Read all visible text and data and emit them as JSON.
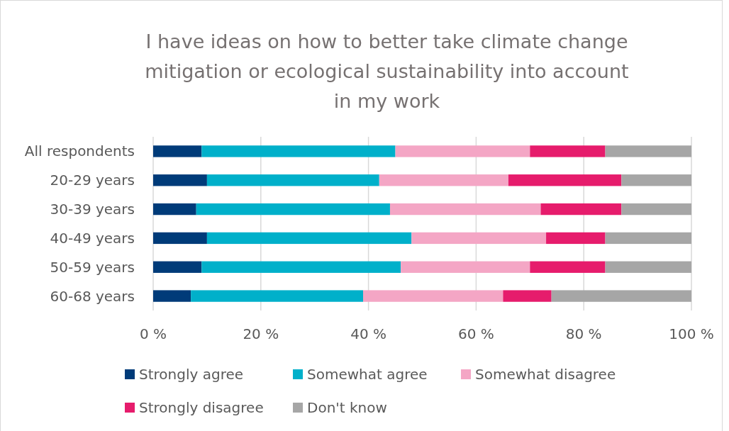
{
  "chart_data": {
    "type": "bar",
    "orientation": "horizontal",
    "stacked": true,
    "title": "I have ideas on how to better take climate change mitigation or ecological sustainability into account in my work",
    "categories": [
      "All respondents",
      "20-29 years",
      "30-39 years",
      "40-49 years",
      "50-59 years",
      "60-68 years"
    ],
    "series": [
      {
        "name": "Strongly agree",
        "color": "#003b79",
        "values": [
          9,
          10,
          8,
          10,
          9,
          7
        ]
      },
      {
        "name": "Somewhat agree",
        "color": "#00b0ca",
        "values": [
          36,
          32,
          36,
          38,
          37,
          32
        ]
      },
      {
        "name": "Somewhat disagree",
        "color": "#f4a6c5",
        "values": [
          25,
          24,
          28,
          25,
          24,
          26
        ]
      },
      {
        "name": "Strongly disagree",
        "color": "#e61c6c",
        "values": [
          14,
          21,
          15,
          11,
          14,
          9
        ]
      },
      {
        "name": "Don't know",
        "color": "#a6a6a6",
        "values": [
          16,
          13,
          13,
          16,
          16,
          26
        ]
      }
    ],
    "xlim": [
      0,
      100
    ],
    "xticks": [
      {
        "value": 0,
        "label": "0 %"
      },
      {
        "value": 20,
        "label": "20 %"
      },
      {
        "value": 40,
        "label": "40 %"
      },
      {
        "value": 60,
        "label": "60 %"
      },
      {
        "value": 80,
        "label": "80 %"
      },
      {
        "value": 100,
        "label": "100 %"
      }
    ],
    "grid": "x",
    "legend": "bottom"
  }
}
